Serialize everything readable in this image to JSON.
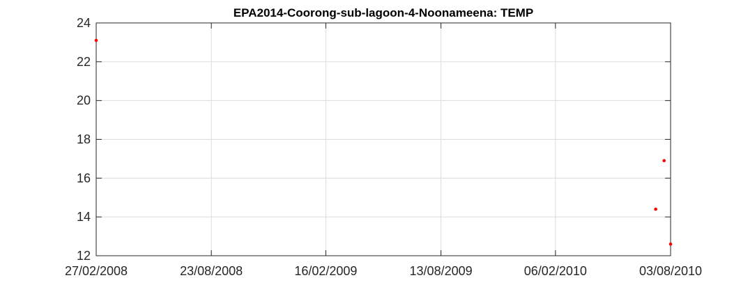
{
  "chart_data": {
    "type": "scatter",
    "title": "EPA2014-Coorong-sub-lagoon-4-Noonameena: TEMP",
    "xlabel": "",
    "ylabel": "",
    "x_ticks": [
      "27/02/2008",
      "23/08/2008",
      "16/02/2009",
      "13/08/2009",
      "06/02/2010",
      "03/08/2010"
    ],
    "x_tick_dates": [
      "2008-02-27",
      "2008-08-23",
      "2009-02-16",
      "2009-08-13",
      "2010-02-06",
      "2010-08-03"
    ],
    "xlim": [
      "2008-02-27",
      "2010-08-03"
    ],
    "y_ticks": [
      12,
      14,
      16,
      18,
      20,
      22,
      24
    ],
    "ylim": [
      12,
      24
    ],
    "grid": true,
    "series": [
      {
        "color": "#ff0000",
        "marker": "dot",
        "points": [
          {
            "x": "2008-02-27",
            "y": 23.1
          },
          {
            "x": "2010-07-11",
            "y": 14.4
          },
          {
            "x": "2010-07-24",
            "y": 16.9
          },
          {
            "x": "2010-08-03",
            "y": 12.6
          }
        ]
      }
    ]
  }
}
